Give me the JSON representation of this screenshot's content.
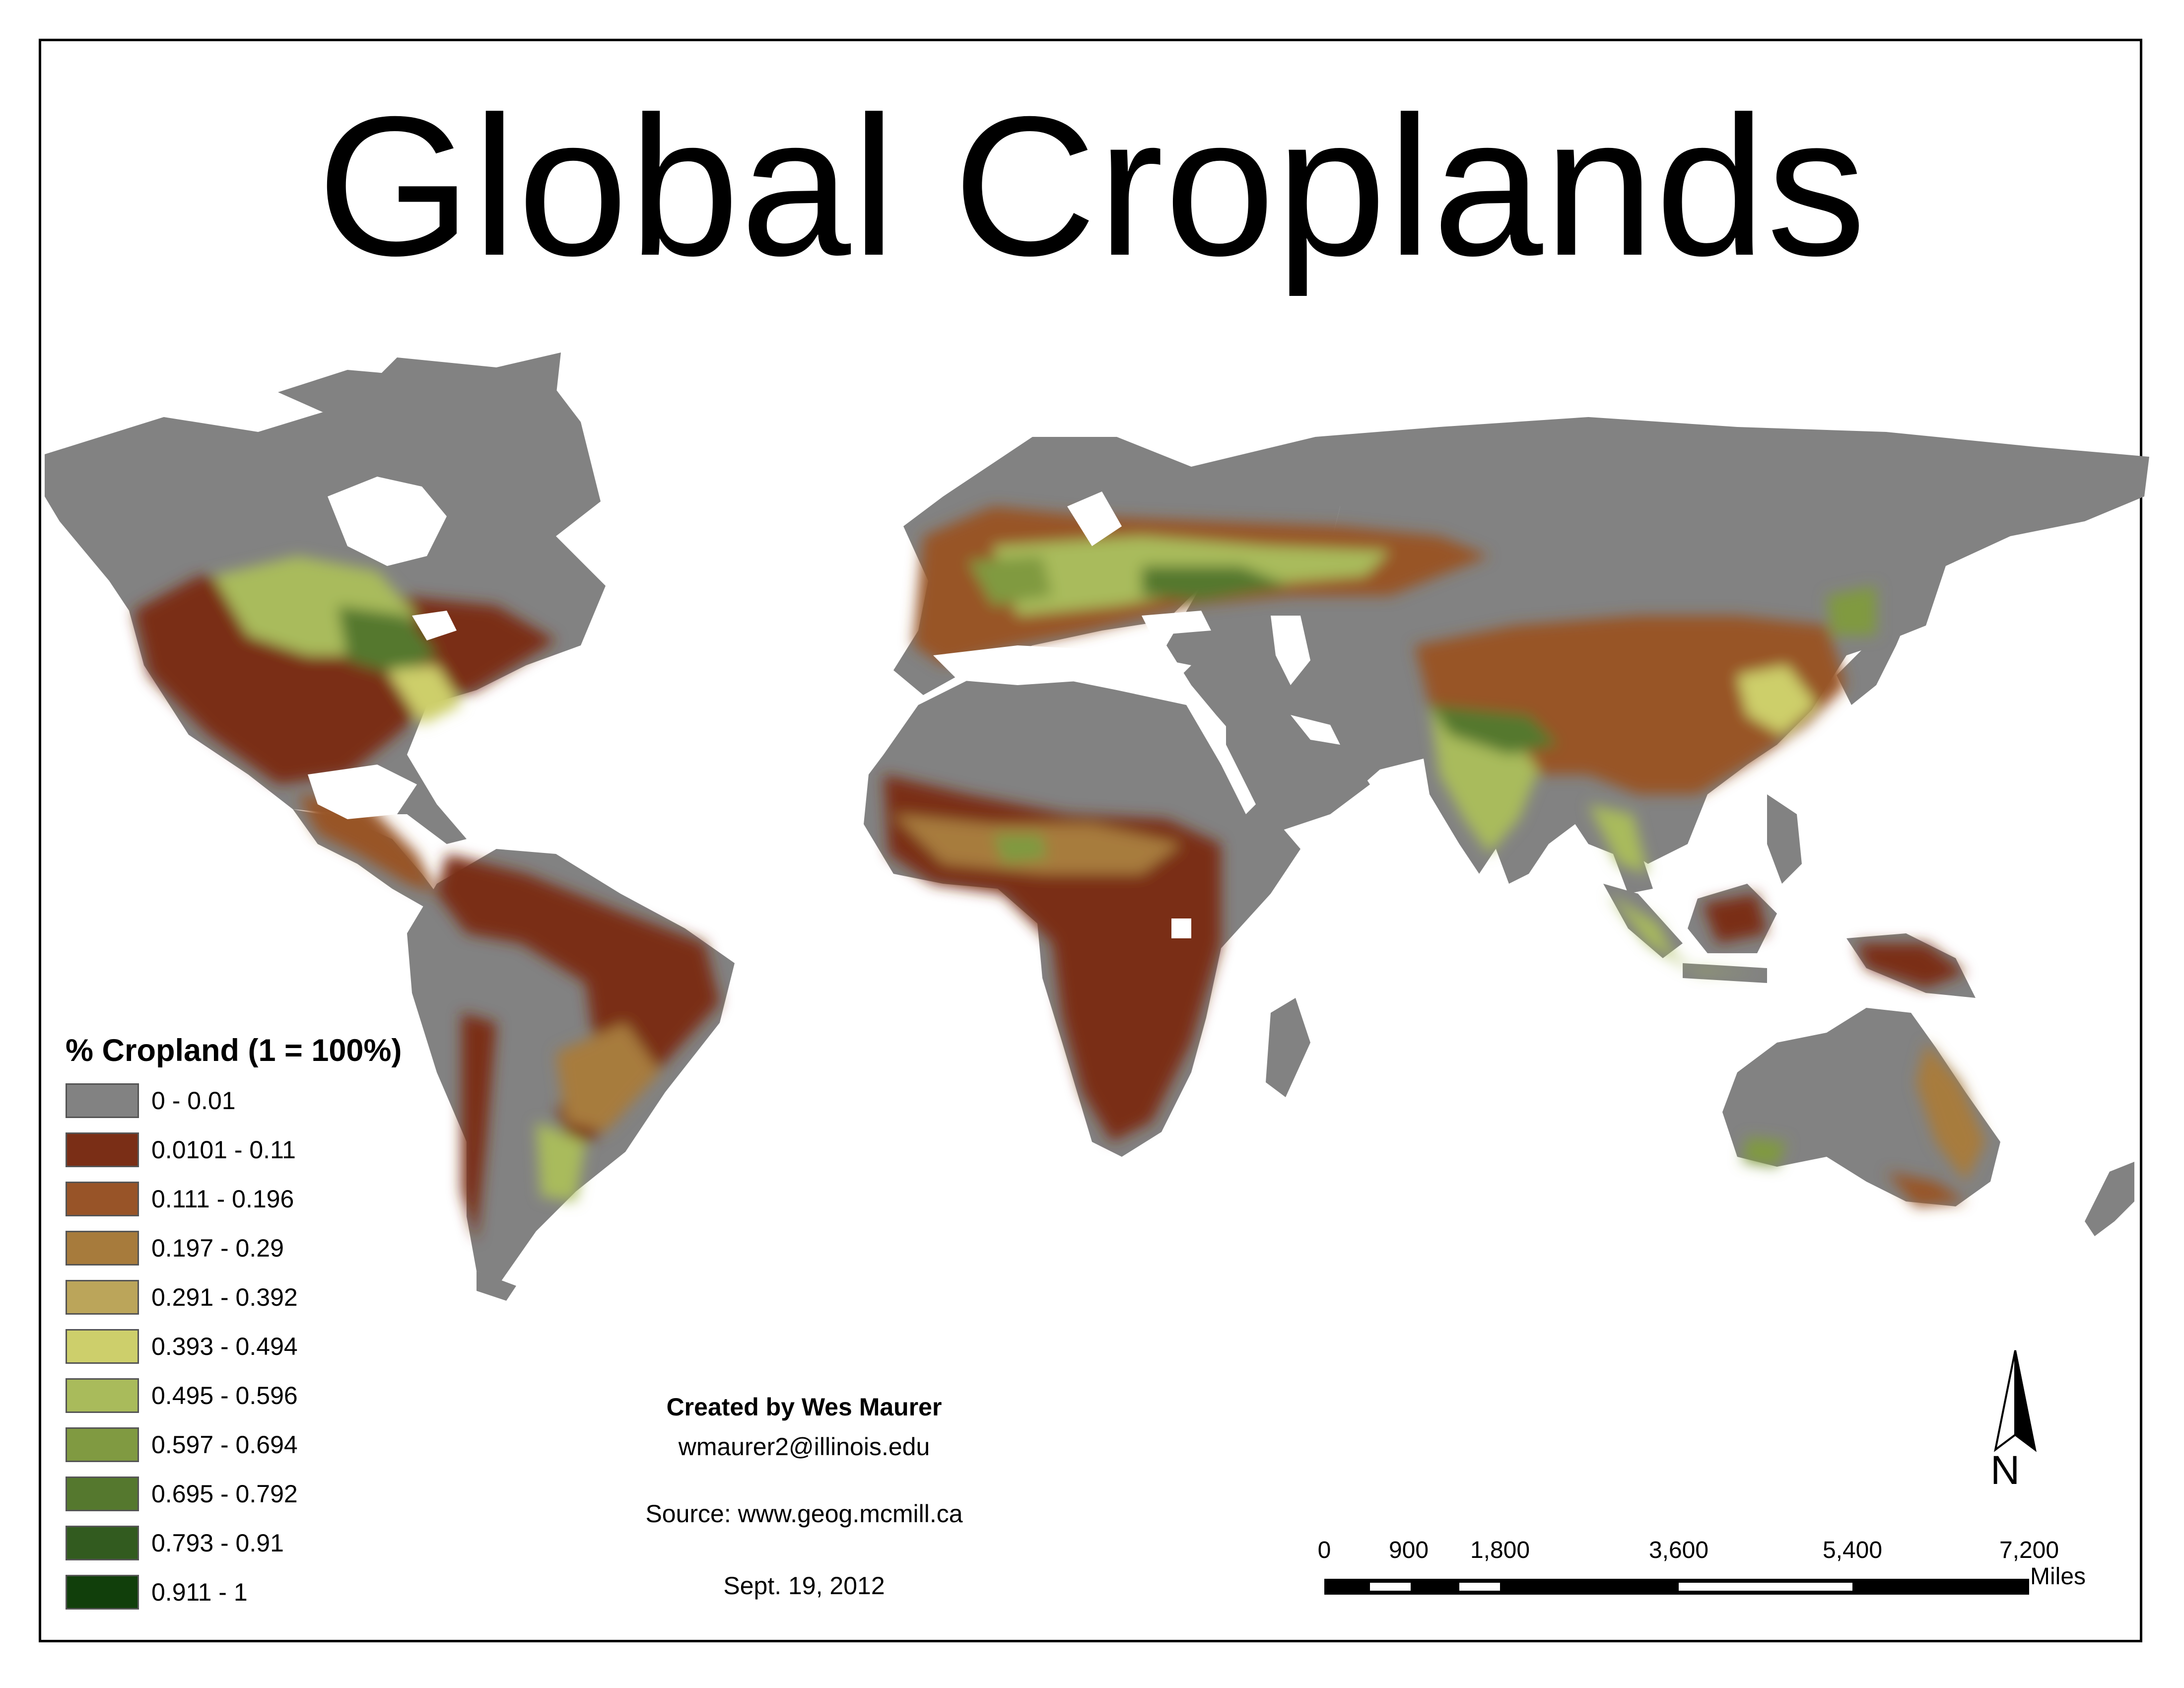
{
  "title": "Global Croplands",
  "legend": {
    "title": "% Cropland (1 = 100%)",
    "classes": [
      {
        "label": "0 - 0.01",
        "color": "#828282"
      },
      {
        "label": "0.0101 - 0.11",
        "color": "#7a2e16"
      },
      {
        "label": "0.111 - 0.196",
        "color": "#985428"
      },
      {
        "label": "0.197 - 0.29",
        "color": "#a77b3c"
      },
      {
        "label": "0.291 - 0.392",
        "color": "#bba55a"
      },
      {
        "label": "0.393 - 0.494",
        "color": "#cdcf6b"
      },
      {
        "label": "0.495 - 0.596",
        "color": "#a9bb5b"
      },
      {
        "label": "0.597 - 0.694",
        "color": "#809a41"
      },
      {
        "label": "0.695 - 0.792",
        "color": "#55782e"
      },
      {
        "label": "0.793 - 0.91",
        "color": "#325b1f"
      },
      {
        "label": "0.911 - 1",
        "color": "#113f0b"
      }
    ]
  },
  "credits": {
    "author": "Created by Wes Maurer",
    "email": "wmaurer2@illinois.edu",
    "source": "Source: www.geog.mcmill.ca",
    "date": "Sept. 19, 2012"
  },
  "scale_bar": {
    "ticks": [
      "0",
      "900",
      "1,800",
      "3,600",
      "5,400",
      "7,200"
    ],
    "unit": "Miles"
  },
  "north_arrow": {
    "letter": "N"
  }
}
